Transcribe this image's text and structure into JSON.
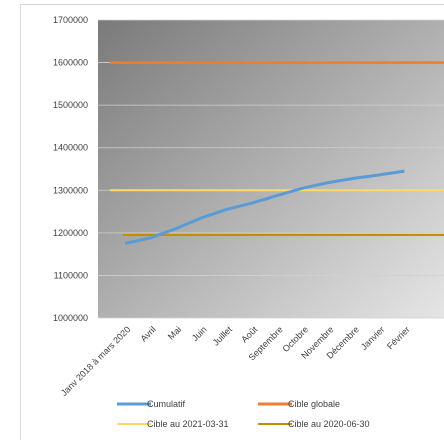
{
  "chart_data": {
    "type": "line",
    "title": "",
    "xlabel": "",
    "ylabel": "",
    "categories": [
      "Janv 2018 à mars 2020",
      "Avril",
      "Mai",
      "Juin",
      "Juillet",
      "Août",
      "Septembre",
      "Octobre",
      "Novembre",
      "Décembre",
      "Janvier",
      "Février"
    ],
    "ylim": [
      1000000,
      1700000
    ],
    "y_ticks": [
      "1700000",
      "1600000",
      "1500000",
      "1400000",
      "1300000",
      "1200000",
      "1100000",
      "1000000"
    ],
    "grid": true,
    "legend_position": "bottom",
    "series": [
      {
        "name": "Cumulatif",
        "kind": "line",
        "color": "#5b9bd5",
        "values": [
          1175000,
          1188000,
          1210000,
          1235000,
          1255000,
          1270000,
          1288000,
          1305000,
          1318000,
          1328000,
          1336000,
          1345000
        ]
      },
      {
        "name": "Cible globale",
        "kind": "hline",
        "color": "#ed7d31",
        "value": 1600000
      },
      {
        "name": "Cible au 2021-03-31",
        "kind": "hline",
        "color": "#ffd966",
        "value": 1300000
      },
      {
        "name": "Cible au 2020-06-30",
        "kind": "hline",
        "color": "#bf9000",
        "value": 1195000
      }
    ]
  }
}
